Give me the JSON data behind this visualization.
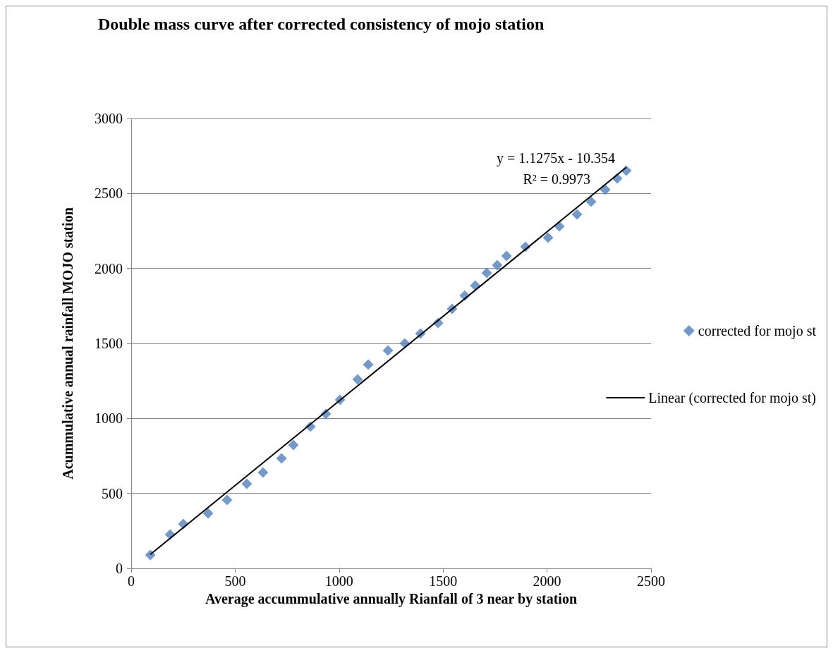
{
  "chart_data": {
    "type": "scatter",
    "title": "Double mass curve after corrected consistency of mojo station",
    "xlabel": "Average accummulative annually Rianfall of 3 near by station",
    "ylabel": "Acummulative annual rainfall MOJO station",
    "xlim": [
      0,
      2500
    ],
    "xticks": [
      0,
      500,
      1000,
      1500,
      2000,
      2500
    ],
    "ylim": [
      0,
      3000
    ],
    "yticks": [
      0,
      500,
      1000,
      1500,
      2000,
      2500,
      3000
    ],
    "grid": "y",
    "legend": "right",
    "annotations": [
      "y = 1.1275x - 10.354",
      "R² = 0.9973"
    ],
    "series": [
      {
        "name": "corrected for mojo st",
        "color": "#4f81bd",
        "marker": "diamond",
        "x": [
          92,
          187,
          251,
          370,
          461,
          556,
          634,
          723,
          780,
          862,
          936,
          1004,
          1089,
          1140,
          1235,
          1316,
          1391,
          1476,
          1543,
          1604,
          1655,
          1710,
          1760,
          1805,
          1896,
          2005,
          2059,
          2144,
          2212,
          2280,
          2337,
          2381
        ],
        "values": [
          89,
          226,
          296,
          367,
          456,
          564,
          639,
          733,
          823,
          945,
          1030,
          1124,
          1260,
          1359,
          1453,
          1500,
          1566,
          1636,
          1730,
          1819,
          1885,
          1970,
          2022,
          2083,
          2144,
          2205,
          2280,
          2360,
          2445,
          2525,
          2600,
          2652
        ]
      },
      {
        "name": "Linear (corrected for mojo st)",
        "type": "line",
        "color": "#000000",
        "marker": "none",
        "line_style": "solid",
        "x": [
          92,
          2381
        ],
        "values": [
          93,
          2674
        ]
      }
    ]
  }
}
